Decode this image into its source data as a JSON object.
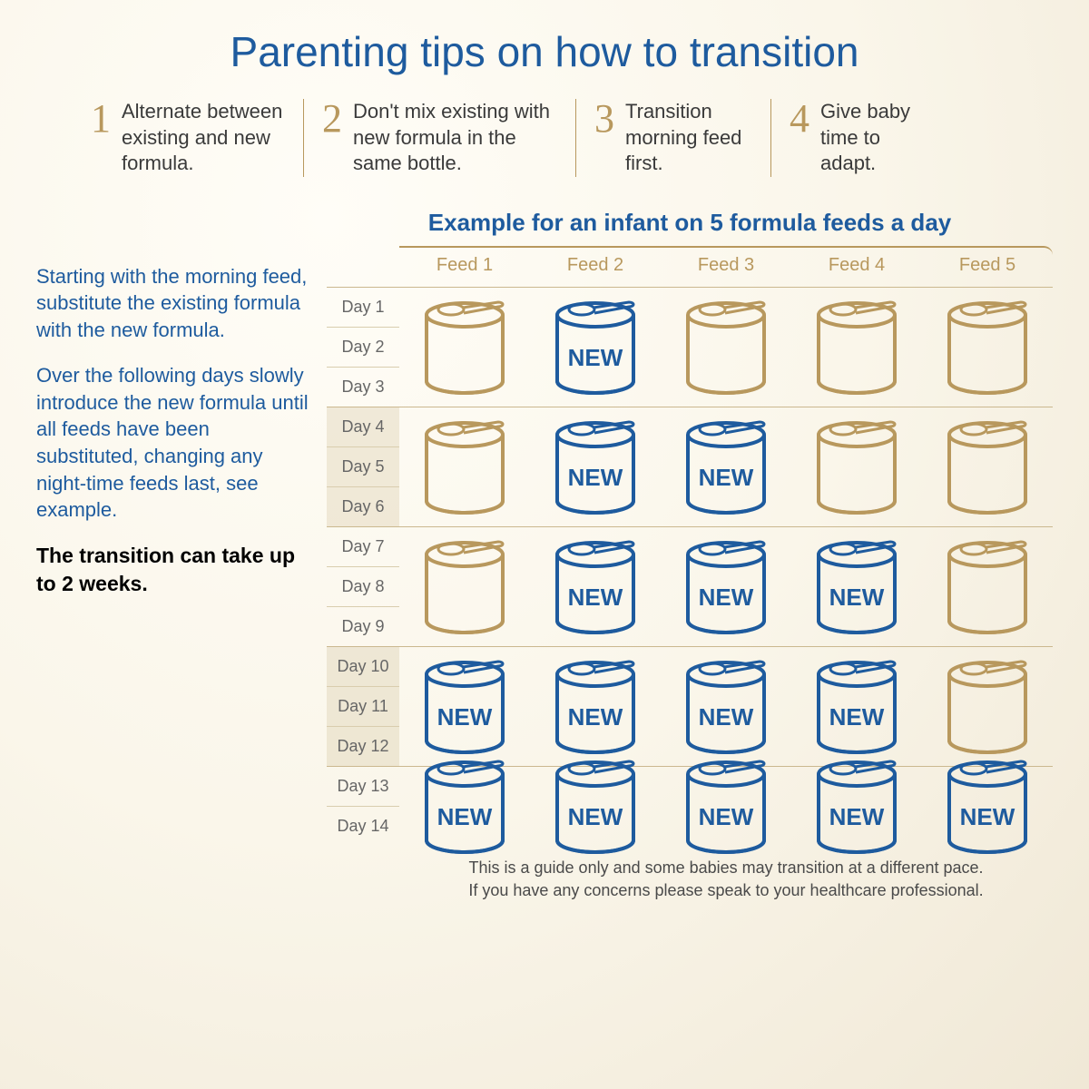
{
  "title": "Parenting tips on how to transition",
  "tips": [
    {
      "num": "1",
      "text": "Alternate between existing and new formula."
    },
    {
      "num": "2",
      "text": "Don't mix existing with new formula in the same bottle."
    },
    {
      "num": "3",
      "text": "Transition morning feed first."
    },
    {
      "num": "4",
      "text": "Give baby time to adapt."
    }
  ],
  "sidebar": {
    "p1": "Starting with the morning feed, substitute the existing formula with the new formula.",
    "p2": "Over the following days slowly introduce the new formula until all feeds have been substituted, changing any night-time feeds last, see example.",
    "p3": "The transition can take up to 2 weeks."
  },
  "chart": {
    "title": "Example for an infant on 5 formula feeds a day",
    "feeds": [
      "Feed 1",
      "Feed 2",
      "Feed 3",
      "Feed 4",
      "Feed 5"
    ],
    "new_label": "NEW",
    "colors": {
      "old": "#b8985d",
      "new": "#1e5b9e"
    },
    "groups": [
      {
        "days": [
          "Day 1",
          "Day 2",
          "Day 3"
        ],
        "pattern": [
          0,
          1,
          0,
          0,
          0
        ]
      },
      {
        "days": [
          "Day 4",
          "Day 5",
          "Day 6"
        ],
        "pattern": [
          0,
          1,
          1,
          0,
          0
        ]
      },
      {
        "days": [
          "Day 7",
          "Day 8",
          "Day 9"
        ],
        "pattern": [
          0,
          1,
          1,
          1,
          0
        ]
      },
      {
        "days": [
          "Day 10",
          "Day 11",
          "Day 12"
        ],
        "pattern": [
          1,
          1,
          1,
          1,
          0
        ]
      },
      {
        "days": [
          "Day 13",
          "Day 14"
        ],
        "pattern": [
          1,
          1,
          1,
          1,
          1
        ]
      }
    ]
  },
  "footer": {
    "l1": "This is a guide only and some babies may transition at a different pace.",
    "l2": "If you have any concerns please speak to your healthcare professional."
  }
}
